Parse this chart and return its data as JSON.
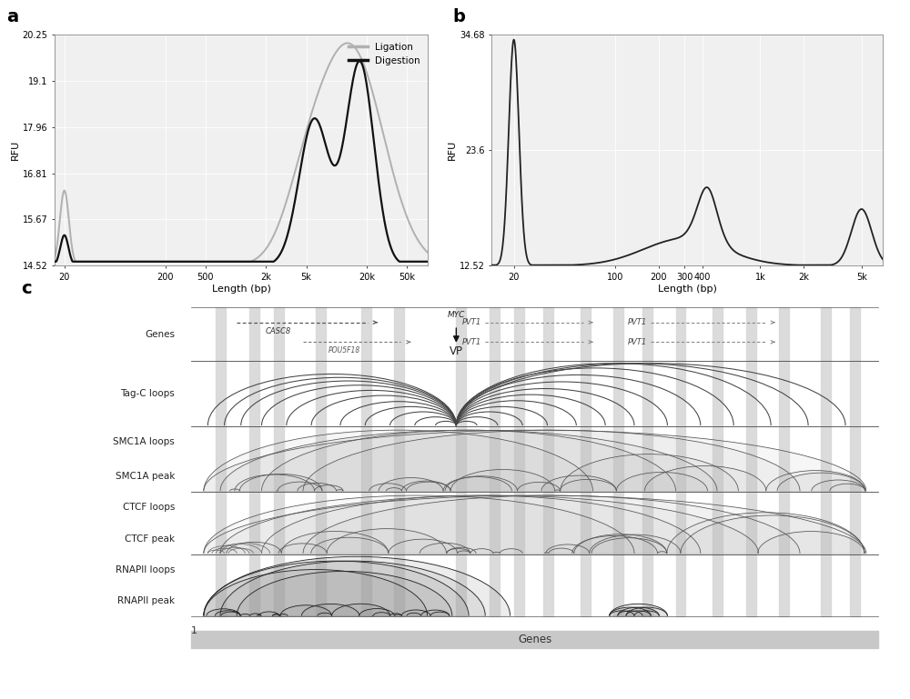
{
  "panel_a": {
    "yticks": [
      14.52,
      15.67,
      16.81,
      17.96,
      19.1,
      20.25
    ],
    "ylabel": "RFU",
    "xlabel": "Length (bp)",
    "xtick_labels": [
      "20",
      "200",
      "500",
      "2k",
      "5k",
      "20k",
      "50k"
    ],
    "legend_labels": [
      "Ligation",
      "Digestion"
    ],
    "legend_colors": [
      "#aaaaaa",
      "#111111"
    ],
    "ylim": [
      14.52,
      20.25
    ],
    "bg_color": "#f0f0f0"
  },
  "panel_b": {
    "yticks": [
      12.52,
      23.6,
      34.68
    ],
    "ylabel": "RFU",
    "xlabel": "Length (bp)",
    "xtick_labels": [
      "20",
      "100",
      "200",
      "300",
      "400",
      "1k",
      "2k",
      "5k"
    ],
    "ylim": [
      12.52,
      34.68
    ],
    "bg_color": "#f0f0f0"
  },
  "figure": {
    "bg_color": "#ffffff"
  }
}
